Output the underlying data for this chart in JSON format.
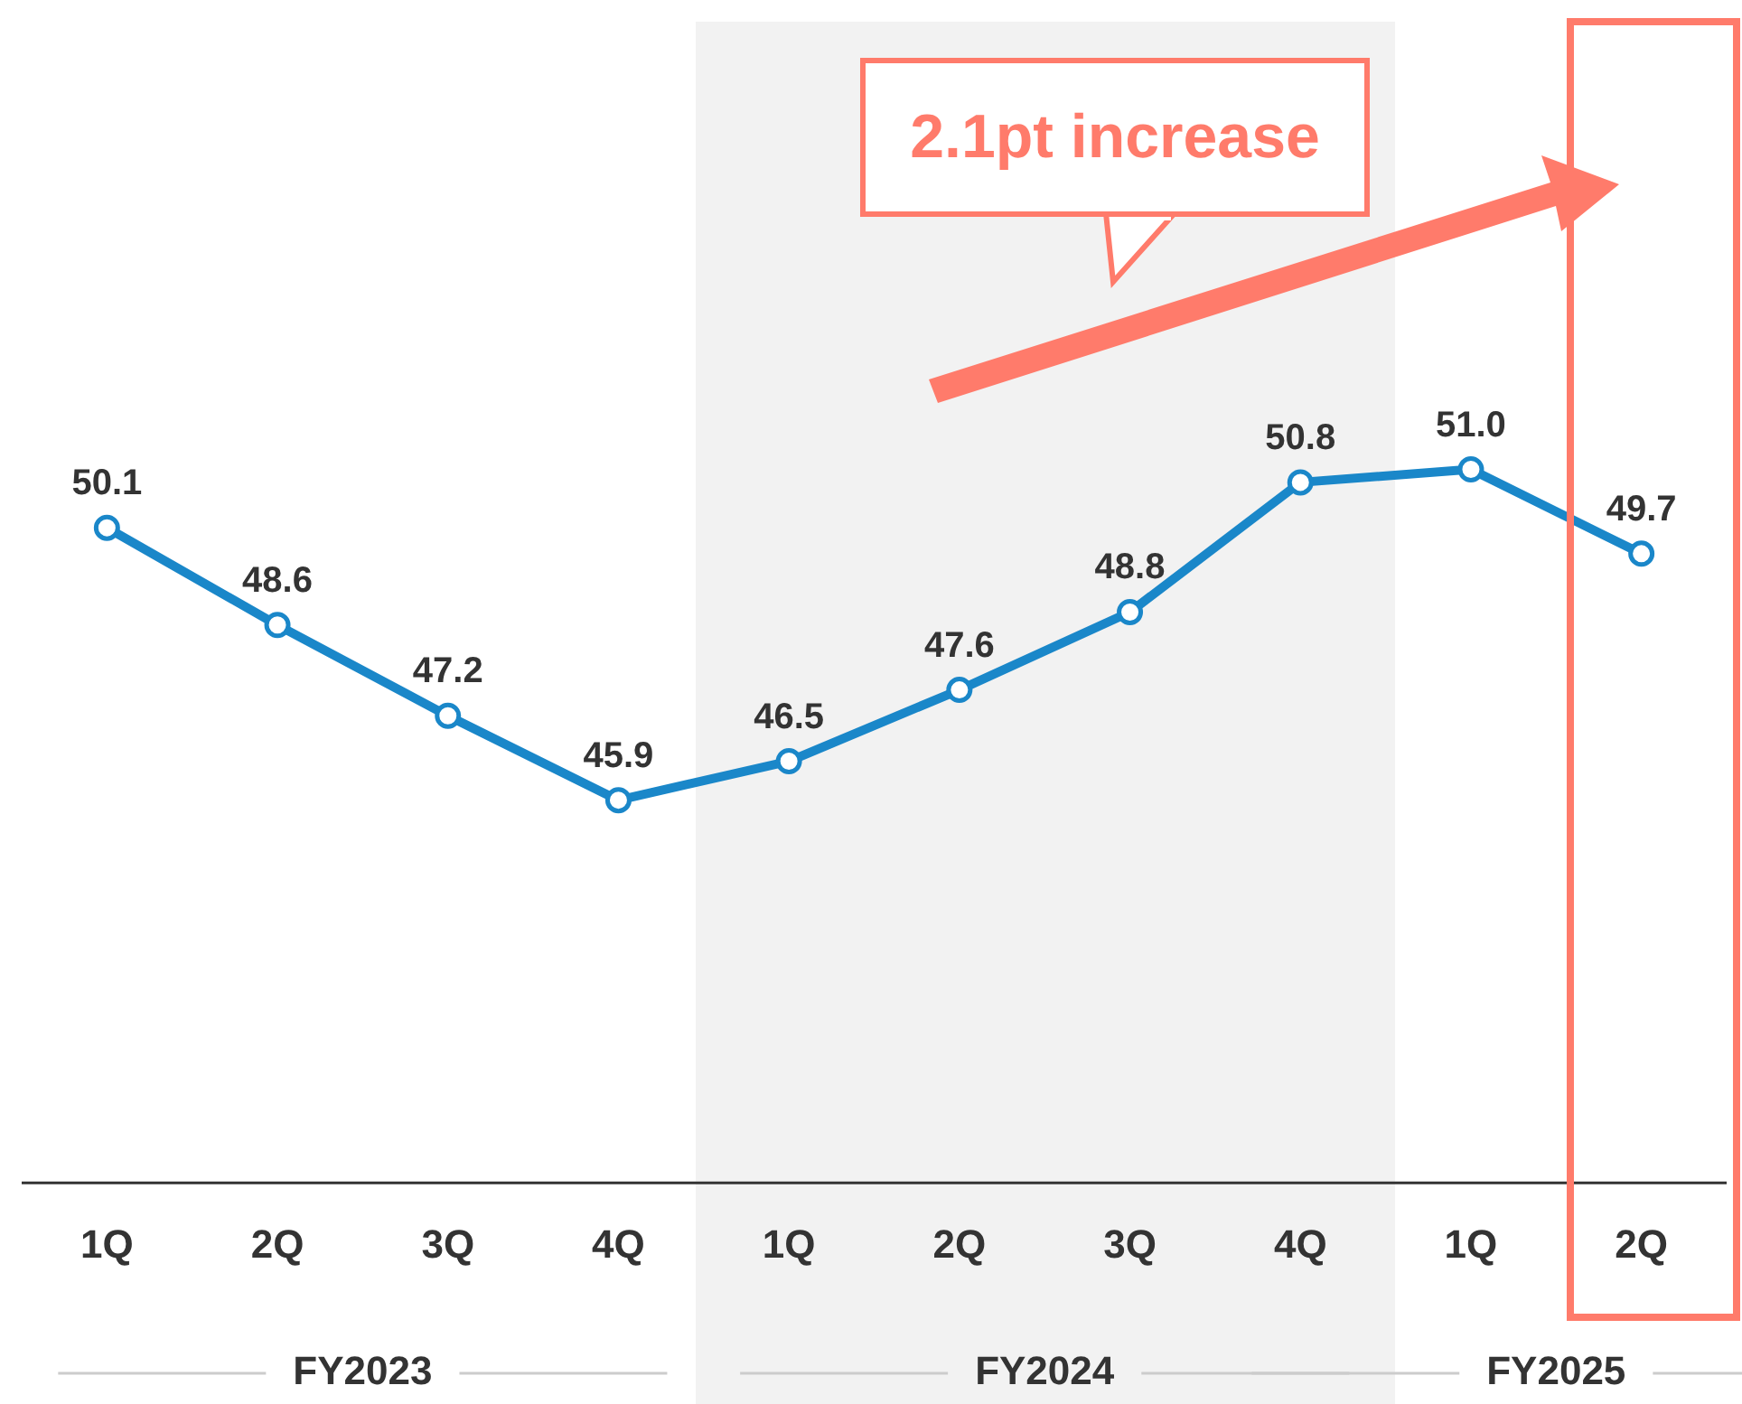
{
  "chart_data": {
    "type": "line",
    "categories": [
      "1Q",
      "2Q",
      "3Q",
      "4Q",
      "1Q",
      "2Q",
      "3Q",
      "4Q",
      "1Q",
      "2Q"
    ],
    "series": [
      {
        "color": "#1a87c9",
        "values": [
          50.1,
          48.6,
          47.2,
          45.9,
          46.5,
          47.6,
          48.8,
          50.8,
          51.0,
          49.7
        ],
        "value_labels": [
          "50.1",
          "48.6",
          "47.2",
          "45.9",
          "46.5",
          "47.6",
          "48.8",
          "50.8",
          "51.0",
          "49.7"
        ]
      }
    ],
    "tick_labels": "x",
    "grid": false,
    "legend": false,
    "marker": "circle",
    "line_style": "solid",
    "annotations": [
      "2.1pt increase",
      "FY2023",
      "FY2024",
      "FY2025"
    ]
  }
}
